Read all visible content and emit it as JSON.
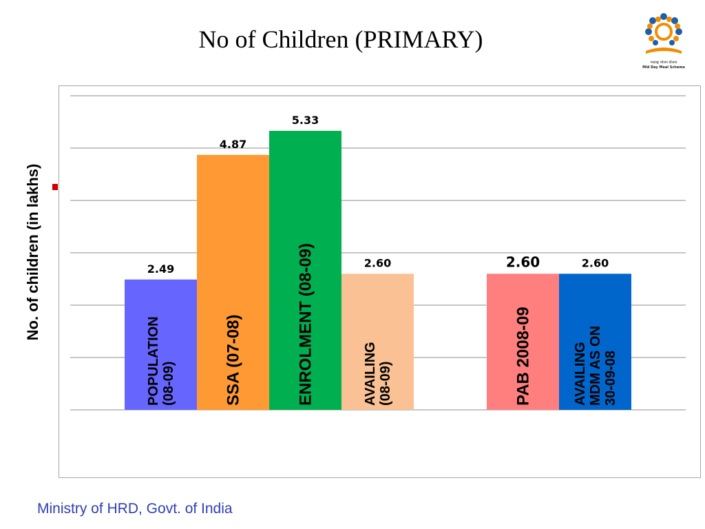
{
  "slide": {
    "title": "No of Children  (PRIMARY)",
    "footer": "Ministry of HRD, Govt. of India",
    "logo": {
      "name": "mid-day-meal-logo",
      "caption_hindi": "मध्याह्न भोजन योजना",
      "caption_english": "Mid Day Meal Scheme"
    }
  },
  "chart_data": {
    "type": "bar",
    "title": "No of Children  (PRIMARY)",
    "ylabel": "No. of children (in lakhs)",
    "xlabel": "",
    "ylim": [
      0,
      6
    ],
    "grid": true,
    "legend": "none",
    "bars": [
      {
        "label": "POPULATION\n(08-09)",
        "value": 2.49,
        "value_label": "2.49",
        "color": "#6666ff",
        "text_color": "#000000",
        "group": 1
      },
      {
        "label": "SSA (07-08)",
        "value": 4.87,
        "value_label": "4.87",
        "color": "#ff9933",
        "text_color": "#000000",
        "group": 1
      },
      {
        "label": "ENROLMENT (08-09)",
        "value": 5.33,
        "value_label": "5.33",
        "color": "#00b050",
        "text_color": "#000000",
        "group": 1
      },
      {
        "label": "AVAILING\n(08-09)",
        "value": 2.6,
        "value_label": "2.60",
        "color": "#f9c194",
        "text_color": "#000000",
        "group": 1
      },
      {
        "label": "PAB 2008-09",
        "value": 2.6,
        "value_label": "2.60",
        "color": "#ff7f7f",
        "text_color": "#000000",
        "group": 2
      },
      {
        "label": "AVAILING\nMDM AS ON\n30-09-08",
        "value": 2.6,
        "value_label": "2.60",
        "color": "#0066cc",
        "text_color": "#000000",
        "group": 2
      }
    ]
  }
}
